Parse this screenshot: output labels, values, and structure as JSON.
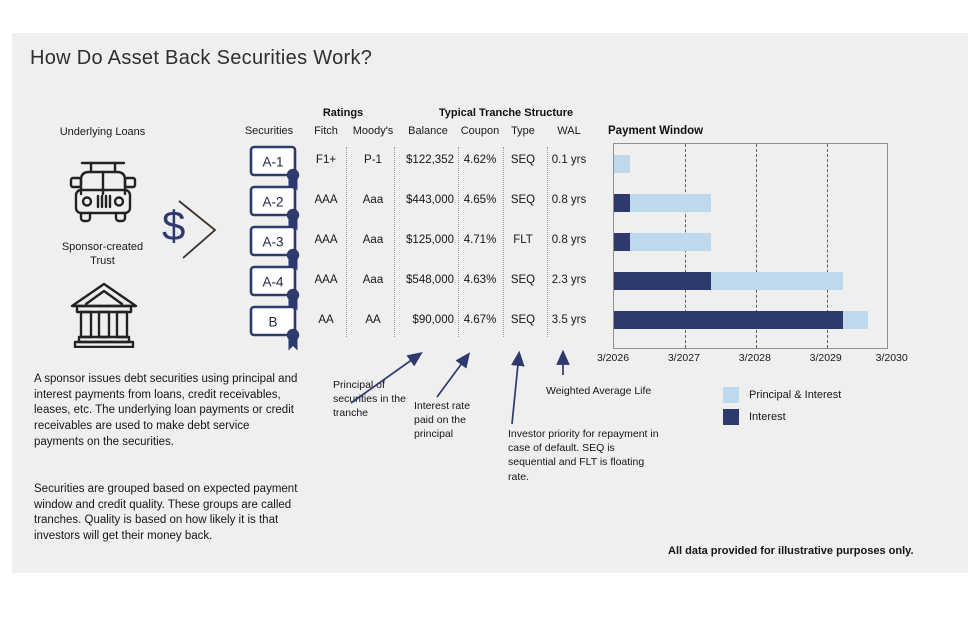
{
  "title": "How Do Asset Back Securities Work?",
  "colors": {
    "navy": "#2e3a6d",
    "light_blue": "#bed9ec",
    "panel_bg": "#efeff0",
    "chevron_brown": "#3b2f28"
  },
  "left_column": {
    "underlying_loans_label": "Underlying Loans",
    "trust_label": "Sponsor-created\nTrust",
    "dollar_symbol": "$",
    "icons": [
      "car-icon",
      "bank-icon",
      "chevron-right-icon"
    ]
  },
  "table": {
    "securities_header": "Securities",
    "group_headers": {
      "ratings": "Ratings",
      "tranche": "Typical Tranche Structure"
    },
    "columns": [
      "Fitch",
      "Moody's",
      "Balance",
      "Coupon",
      "Type",
      "WAL"
    ],
    "rows": [
      {
        "security": "A-1",
        "fitch": "F1+",
        "moodys": "P-1",
        "balance": "$122,352",
        "coupon": "4.62%",
        "type": "SEQ",
        "wal": "0.1 yrs"
      },
      {
        "security": "A-2",
        "fitch": "AAA",
        "moodys": "Aaa",
        "balance": "$443,000",
        "coupon": "4.65%",
        "type": "SEQ",
        "wal": "0.8 yrs"
      },
      {
        "security": "A-3",
        "fitch": "AAA",
        "moodys": "Aaa",
        "balance": "$125,000",
        "coupon": "4.71%",
        "type": "FLT",
        "wal": "0.8 yrs"
      },
      {
        "security": "A-4",
        "fitch": "AAA",
        "moodys": "Aaa",
        "balance": "$548,000",
        "coupon": "4.63%",
        "type": "SEQ",
        "wal": "2.3 yrs"
      },
      {
        "security": "B",
        "fitch": "AA",
        "moodys": "AA",
        "balance": "$90,000",
        "coupon": "4.67%",
        "type": "SEQ",
        "wal": "3.5 yrs"
      }
    ]
  },
  "annotations": {
    "balance": "Principal of securities in the tranche",
    "coupon": "Interest rate paid on the principal",
    "type": "Investor priority for repayment in case of default. SEQ is sequential and FLT is floating rate.",
    "wal": "Weighted Average Life"
  },
  "paragraphs": [
    "A sponsor issues debt securities using principal and interest payments from loans, credit receivables, leases, etc. The underlying loan payments or credit receivables are used to make debt service payments on the securities.",
    "Securities are grouped based on expected payment window and credit quality. These groups are called tranches. Quality is based on how likely it is that investors will get their money back."
  ],
  "footer": "All data provided for illustrative purposes only.",
  "chart_data": {
    "type": "bar",
    "orientation": "horizontal",
    "title": "Payment Window",
    "categories": [
      "A-1",
      "A-2",
      "A-3",
      "A-4",
      "B"
    ],
    "x_axis": {
      "labels": [
        "3/2026",
        "3/2027",
        "3/2028",
        "3/2029",
        "3/2030"
      ],
      "label_positions_years": [
        0,
        1,
        2,
        3,
        3.93
      ],
      "range_years": [
        0,
        3.85
      ],
      "gridline_years": [
        1,
        2,
        3
      ],
      "grid": "dashed vertical"
    },
    "series": [
      {
        "name": "Interest",
        "color": "#2e3a6d",
        "ranges_years": [
          null,
          [
            0,
            0.22
          ],
          [
            0,
            0.22
          ],
          [
            0,
            1.37
          ],
          [
            0,
            3.23
          ]
        ]
      },
      {
        "name": "Principal & Interest",
        "color": "#bed9ec",
        "ranges_years": [
          [
            0,
            0.22
          ],
          [
            0.22,
            1.37
          ],
          [
            0.22,
            1.37
          ],
          [
            1.37,
            3.23
          ],
          [
            3.23,
            3.58
          ]
        ]
      }
    ],
    "legend_items": [
      {
        "label": "Principal & Interest",
        "color": "#bed9ec"
      },
      {
        "label": "Interest",
        "color": "#2e3a6d"
      }
    ],
    "legend_position": "below-right"
  }
}
